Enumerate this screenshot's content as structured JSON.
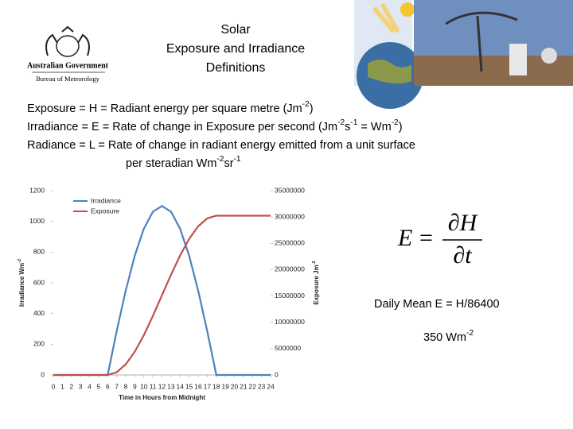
{
  "header": {
    "title": [
      "Solar",
      "Exposure and Irradiance",
      "Definitions"
    ],
    "logo": [
      "Australian Government",
      "Bureau of Meteorology"
    ]
  },
  "definitions": [
    [
      "Exposure  = H = Radiant energy per square metre (Jm",
      "-2",
      ")"
    ],
    [
      "Irradiance = E = Rate of change in Exposure per second (Jm",
      "-2",
      "s",
      "-1",
      " = Wm",
      "-2",
      ")"
    ],
    [
      "Radiance = L = Rate of change in radiant energy emitted from a unit surface"
    ],
    [
      "per steradian Wm",
      "-2",
      "sr",
      "-1"
    ]
  ],
  "formula": {
    "lhs": "E",
    "eq": "=",
    "num": "∂H",
    "den": "∂t"
  },
  "notes": [
    [
      "Daily Mean E = H/86400"
    ],
    [
      "350 Wm",
      "-2"
    ]
  ],
  "chart_data": {
    "type": "line",
    "x": [
      0,
      1,
      2,
      3,
      4,
      5,
      6,
      7,
      8,
      9,
      10,
      11,
      12,
      13,
      14,
      15,
      16,
      17,
      18,
      19,
      20,
      21,
      22,
      23,
      24
    ],
    "xlim": [
      0,
      24
    ],
    "xticks": [
      0,
      1,
      2,
      3,
      4,
      5,
      6,
      7,
      8,
      9,
      10,
      11,
      12,
      13,
      14,
      15,
      16,
      17,
      18,
      19,
      20,
      21,
      22,
      23,
      24
    ],
    "xlabel": "Time in Hours from Midnight",
    "ylabel": [
      "Irradiance Wm",
      "-2"
    ],
    "y2label": [
      "Exposure Jm",
      "-2"
    ],
    "ylim": [
      0,
      1200
    ],
    "yticks": [
      0,
      200,
      400,
      600,
      800,
      1000,
      1200
    ],
    "y2lim": [
      0,
      35000000
    ],
    "y2ticks": [
      0,
      5000000,
      10000000,
      15000000,
      20000000,
      25000000,
      30000000,
      35000000
    ],
    "legend": "upper left",
    "series": [
      {
        "name": "Irradiance",
        "color": "#4f81bd",
        "axis": "y",
        "values": [
          0,
          0,
          0,
          0,
          0,
          0,
          0,
          285,
          550,
          778,
          953,
          1063,
          1100,
          1063,
          953,
          778,
          550,
          285,
          0,
          0,
          0,
          0,
          0,
          0,
          0
        ]
      },
      {
        "name": "Exposure",
        "color": "#c0504d",
        "axis": "y2",
        "values": [
          0,
          0,
          0,
          0,
          0,
          0,
          0,
          515000,
          2027000,
          4431000,
          7564000,
          11212000,
          15127000,
          19042000,
          22691000,
          25823000,
          28227000,
          29739000,
          30254000,
          30254000,
          30254000,
          30254000,
          30254000,
          30254000,
          30254000
        ]
      }
    ]
  }
}
